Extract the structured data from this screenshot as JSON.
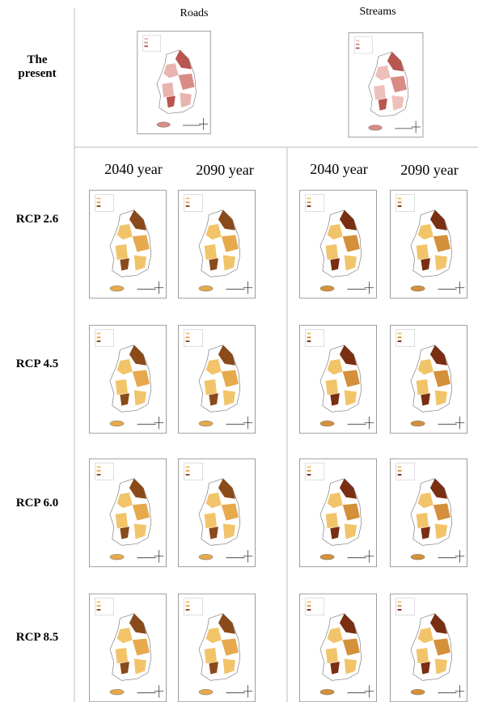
{
  "header": {
    "present_label": "The present",
    "top_columns": [
      "Roads",
      "Streams"
    ],
    "year_columns": [
      "2040 year",
      "2090 year",
      "2040 year",
      "2090 year"
    ]
  },
  "rows": [
    "RCP 2.6",
    "RCP 4.5",
    "RCP 6.0",
    "RCP 8.5"
  ]
}
